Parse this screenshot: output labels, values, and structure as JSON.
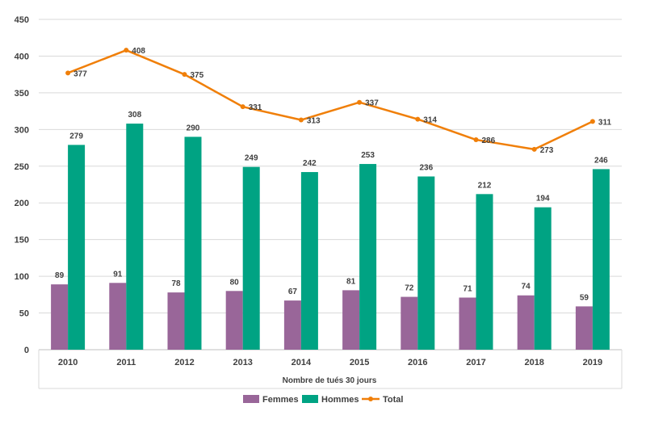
{
  "chart_data": {
    "type": "bar",
    "categories": [
      "2010",
      "2011",
      "2012",
      "2013",
      "2014",
      "2015",
      "2016",
      "2017",
      "2018",
      "2019"
    ],
    "series": [
      {
        "name": "Femmes",
        "type": "bar",
        "color": "#996699",
        "values": [
          89,
          91,
          78,
          80,
          67,
          81,
          72,
          71,
          74,
          59
        ]
      },
      {
        "name": "Hommes",
        "type": "bar",
        "color": "#00A383",
        "values": [
          279,
          308,
          290,
          249,
          242,
          253,
          236,
          212,
          194,
          246
        ]
      },
      {
        "name": "Total",
        "type": "line",
        "color": "#F07F09",
        "values": [
          377,
          408,
          375,
          331,
          313,
          337,
          314,
          286,
          273,
          311
        ]
      }
    ],
    "xlabel": "Nombre de tués 30 jours",
    "ylabel": "",
    "ylim": [
      0,
      450
    ],
    "yticks": [
      0,
      50,
      100,
      150,
      200,
      250,
      300,
      350,
      400,
      450
    ],
    "grid": true,
    "legend": "bottom"
  }
}
